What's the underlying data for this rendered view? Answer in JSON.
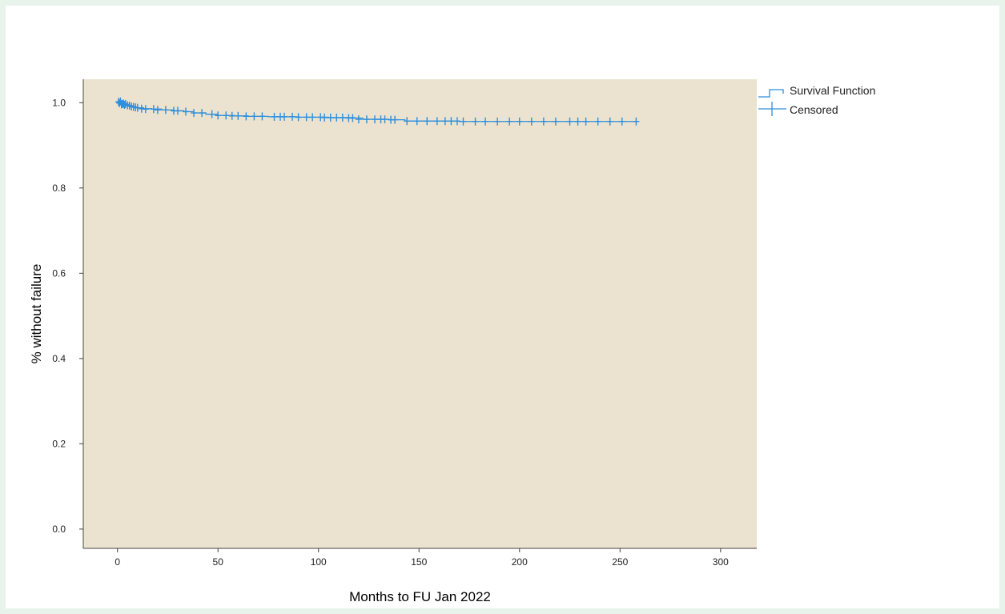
{
  "chart_data": {
    "type": "line",
    "subtype": "kaplan-meier",
    "title": "",
    "xlabel": "Months to FU Jan 2022",
    "ylabel": "% without failure",
    "xlim": [
      -17,
      318
    ],
    "ylim": [
      -0.0452,
      1.055
    ],
    "x_ticks": [
      0,
      50,
      100,
      150,
      200,
      250,
      300
    ],
    "y_ticks": [
      0.0,
      0.2,
      0.4,
      0.6,
      0.8,
      1.0
    ],
    "x_tick_labels": [
      "0",
      "50",
      "100",
      "150",
      "200",
      "250",
      "300"
    ],
    "y_tick_labels": [
      "0.0",
      "0.2",
      "0.4",
      "0.6",
      "0.8",
      "1.0"
    ],
    "grid": false,
    "plot_background": "#ebe3d0",
    "line_color": "#2f8fdc",
    "legend_placement": "right-top",
    "legend": [
      {
        "label": "Survival Function",
        "symbol": "step"
      },
      {
        "label": "Censored",
        "symbol": "plus"
      }
    ],
    "series": [
      {
        "name": "Survival Function",
        "steps": [
          [
            0,
            1.0
          ],
          [
            2,
            0.997
          ],
          [
            4,
            0.995
          ],
          [
            6,
            0.993
          ],
          [
            8,
            0.99
          ],
          [
            10,
            0.988
          ],
          [
            13,
            0.986
          ],
          [
            17,
            0.985
          ],
          [
            22,
            0.983
          ],
          [
            28,
            0.981
          ],
          [
            33,
            0.979
          ],
          [
            38,
            0.976
          ],
          [
            44,
            0.973
          ],
          [
            50,
            0.97
          ],
          [
            58,
            0.969
          ],
          [
            65,
            0.968
          ],
          [
            75,
            0.967
          ],
          [
            90,
            0.966
          ],
          [
            105,
            0.965
          ],
          [
            118,
            0.964
          ],
          [
            122,
            0.961
          ],
          [
            135,
            0.96
          ],
          [
            143,
            0.957
          ],
          [
            170,
            0.956
          ],
          [
            259,
            0.956
          ]
        ]
      },
      {
        "name": "Censored",
        "x": [
          0.5,
          1,
          1.5,
          2,
          2.5,
          3,
          3.5,
          4,
          5,
          6,
          7,
          8,
          9,
          10,
          12,
          14,
          18,
          20,
          24,
          28,
          30,
          34,
          38,
          42,
          47,
          50,
          54,
          57,
          60,
          64,
          68,
          72,
          78,
          81,
          83,
          87,
          90,
          94,
          97,
          101,
          103,
          106,
          109,
          112,
          115,
          117,
          120,
          124,
          128,
          131,
          133,
          136,
          138,
          144,
          149,
          154,
          159,
          163,
          166,
          169,
          172,
          178,
          183,
          189,
          195,
          200,
          206,
          212,
          218,
          225,
          229,
          233,
          239,
          245,
          251,
          258
        ],
        "y": [
          1.002,
          0.999,
          1.003,
          0.996,
          0.997,
          0.998,
          0.995,
          0.997,
          0.994,
          0.993,
          0.991,
          0.99,
          0.989,
          0.988,
          0.986,
          0.985,
          0.985,
          0.983,
          0.983,
          0.981,
          0.981,
          0.979,
          0.976,
          0.976,
          0.973,
          0.97,
          0.97,
          0.969,
          0.969,
          0.968,
          0.968,
          0.968,
          0.967,
          0.967,
          0.967,
          0.967,
          0.966,
          0.966,
          0.966,
          0.966,
          0.965,
          0.965,
          0.965,
          0.965,
          0.964,
          0.964,
          0.961,
          0.961,
          0.961,
          0.961,
          0.961,
          0.96,
          0.96,
          0.957,
          0.957,
          0.957,
          0.957,
          0.957,
          0.957,
          0.957,
          0.956,
          0.956,
          0.956,
          0.956,
          0.956,
          0.956,
          0.956,
          0.956,
          0.956,
          0.956,
          0.956,
          0.956,
          0.956,
          0.956,
          0.956,
          0.956
        ]
      }
    ]
  }
}
